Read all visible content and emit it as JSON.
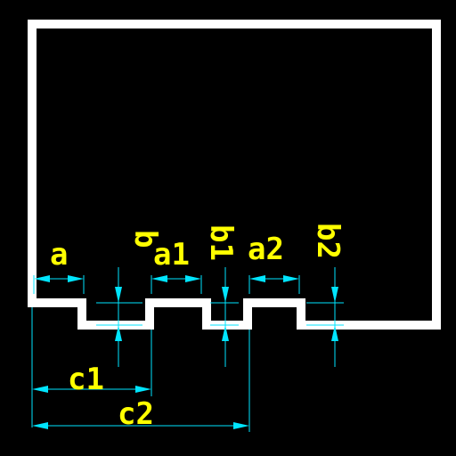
{
  "colors": {
    "background": "#000000",
    "outline": "#ffffff",
    "dimension_lines": "#00e5ff",
    "labels": "#ffff00"
  },
  "labels": {
    "a": "a",
    "b": "b",
    "a1": "a1",
    "b1": "b1",
    "a2": "a2",
    "b2": "b2",
    "c1": "c1",
    "c2": "c2"
  }
}
